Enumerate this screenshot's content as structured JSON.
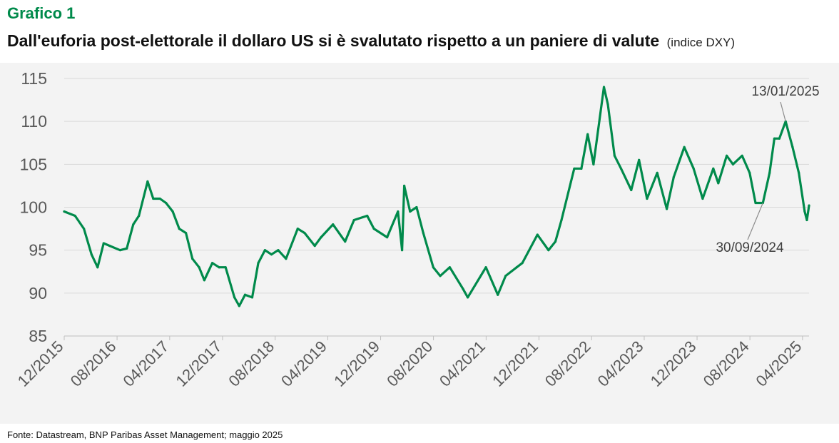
{
  "header": {
    "figure_label": "Grafico 1",
    "title": "Dall'euforia post-elettorale il dollaro US si è svalutato rispetto a un paniere di valute",
    "subtitle": "(indice DXY)"
  },
  "footer": {
    "source": "Fonte: Datastream, BNP Paribas Asset Management; maggio 2025"
  },
  "chart_data": {
    "type": "line",
    "title": "Dall'euforia post-elettorale il dollaro US si è svalutato rispetto a un paniere di valute",
    "subtitle": "(indice DXY)",
    "xlabel": "",
    "ylabel": "",
    "ylim": [
      85,
      115
    ],
    "yticks": [
      85,
      90,
      95,
      100,
      105,
      110,
      115
    ],
    "xlim": [
      "2015-12-01",
      "2025-05-01"
    ],
    "xticks": [
      {
        "label": "12/2015",
        "date": "2015-12-01"
      },
      {
        "label": "08/2016",
        "date": "2016-08-01"
      },
      {
        "label": "04/2017",
        "date": "2017-04-01"
      },
      {
        "label": "12/2017",
        "date": "2017-12-01"
      },
      {
        "label": "08/2018",
        "date": "2018-08-01"
      },
      {
        "label": "04/2019",
        "date": "2019-04-01"
      },
      {
        "label": "12/2019",
        "date": "2019-12-01"
      },
      {
        "label": "08/2020",
        "date": "2020-08-01"
      },
      {
        "label": "04/2021",
        "date": "2021-04-01"
      },
      {
        "label": "12/2021",
        "date": "2021-12-01"
      },
      {
        "label": "08/2022",
        "date": "2022-08-01"
      },
      {
        "label": "04/2023",
        "date": "2023-04-01"
      },
      {
        "label": "12/2023",
        "date": "2023-12-01"
      },
      {
        "label": "08/2024",
        "date": "2024-08-01"
      },
      {
        "label": "04/2025",
        "date": "2025-04-01"
      }
    ],
    "grid": true,
    "line_color": "#008a4b",
    "series": [
      {
        "x": [
          "2015-12-01",
          "2016-01-20",
          "2016-03-01",
          "2016-04-05",
          "2016-05-03",
          "2016-05-31",
          "2016-06-28",
          "2016-08-15",
          "2016-09-15",
          "2016-10-15",
          "2016-11-10",
          "2016-12-20",
          "2017-01-15",
          "2017-02-15",
          "2017-03-15",
          "2017-04-15",
          "2017-05-15",
          "2017-06-15",
          "2017-07-15",
          "2017-08-15",
          "2017-09-08",
          "2017-10-15",
          "2017-11-15",
          "2017-12-15",
          "2018-01-25",
          "2018-02-16",
          "2018-03-15",
          "2018-04-17",
          "2018-05-15",
          "2018-06-15",
          "2018-07-15",
          "2018-08-15",
          "2018-09-20",
          "2018-11-13",
          "2018-12-15",
          "2019-01-31",
          "2019-03-01",
          "2019-04-25",
          "2019-06-20",
          "2019-07-31",
          "2019-09-30",
          "2019-10-31",
          "2019-12-31",
          "2020-02-19",
          "2020-03-09",
          "2020-03-19",
          "2020-04-15",
          "2020-05-15",
          "2020-06-15",
          "2020-07-31",
          "2020-09-01",
          "2020-10-15",
          "2020-12-15",
          "2021-01-06",
          "2021-03-31",
          "2021-05-25",
          "2021-06-30",
          "2021-08-20",
          "2021-09-15",
          "2021-11-24",
          "2022-01-14",
          "2022-02-15",
          "2022-03-15",
          "2022-04-28",
          "2022-05-13",
          "2022-06-15",
          "2022-07-14",
          "2022-08-10",
          "2022-09-27",
          "2022-10-15",
          "2022-11-15",
          "2022-12-15",
          "2023-01-31",
          "2023-03-08",
          "2023-04-14",
          "2023-05-31",
          "2023-07-14",
          "2023-08-15",
          "2023-10-03",
          "2023-11-15",
          "2023-12-27",
          "2024-02-14",
          "2024-03-08",
          "2024-04-16",
          "2024-05-15",
          "2024-06-26",
          "2024-07-31",
          "2024-08-27",
          "2024-09-30",
          "2024-10-31",
          "2024-11-22",
          "2024-12-15",
          "2025-01-13",
          "2025-02-14",
          "2025-03-15",
          "2025-04-11",
          "2025-04-21",
          "2025-05-01"
        ],
        "values": [
          99.5,
          99.0,
          97.5,
          94.5,
          93.0,
          95.8,
          95.5,
          95.0,
          95.2,
          98.0,
          99.0,
          103.0,
          101.0,
          101.0,
          100.5,
          99.5,
          97.5,
          97.0,
          94.0,
          93.0,
          91.5,
          93.5,
          93.0,
          93.0,
          89.5,
          88.5,
          89.8,
          89.5,
          93.5,
          95.0,
          94.5,
          95.0,
          94.0,
          97.5,
          97.0,
          95.5,
          96.5,
          98.0,
          96.0,
          98.5,
          99.0,
          97.5,
          96.5,
          99.5,
          95.0,
          102.5,
          99.5,
          100.0,
          97.0,
          93.0,
          92.0,
          93.0,
          90.5,
          89.5,
          93.0,
          89.8,
          92.0,
          93.0,
          93.5,
          96.8,
          95.0,
          96.0,
          98.5,
          103.0,
          104.5,
          104.5,
          108.5,
          105.0,
          114.0,
          112.0,
          106.0,
          104.5,
          102.0,
          105.5,
          101.0,
          104.0,
          99.8,
          103.5,
          107.0,
          104.5,
          101.0,
          104.5,
          102.8,
          106.0,
          105.0,
          106.0,
          104.0,
          100.5,
          100.5,
          104.0,
          108.0,
          108.0,
          110.0,
          107.0,
          104.0,
          99.5,
          98.5,
          100.2
        ]
      }
    ],
    "annotations": [
      {
        "text": "13/01/2025",
        "date": "2025-01-13",
        "value": 110.0
      },
      {
        "text": "30/09/2024",
        "date": "2024-09-30",
        "value": 100.5
      }
    ]
  }
}
